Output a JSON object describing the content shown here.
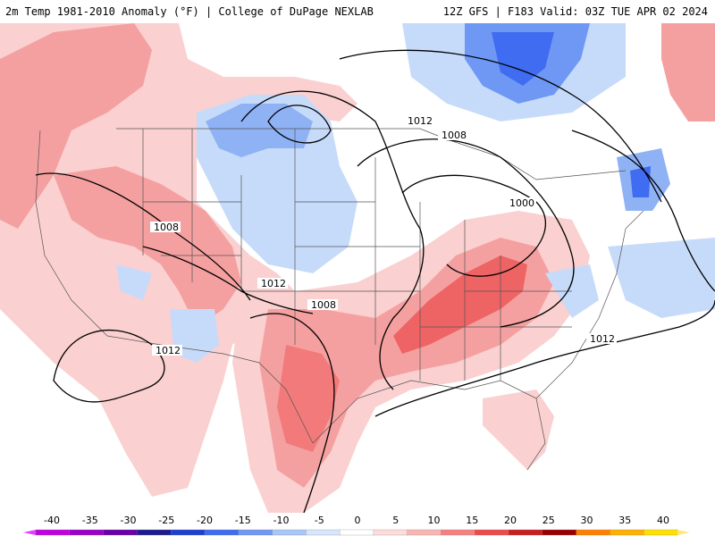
{
  "header": {
    "left_title": "2m Temp 1981-2010 Anomaly (°F) | College of DuPage NEXLAB",
    "right_title": "12Z GFS | F183 Valid: 03Z TUE APR 02 2024"
  },
  "contour_labels": [
    {
      "id": "isobar-1012-north",
      "text": "1012"
    },
    {
      "id": "isobar-1008-north",
      "text": "1008"
    },
    {
      "id": "isobar-1000",
      "text": "1000"
    },
    {
      "id": "isobar-1008-west",
      "text": "1008"
    },
    {
      "id": "isobar-1012-central",
      "text": "1012"
    },
    {
      "id": "isobar-1008-central",
      "text": "1008"
    },
    {
      "id": "isobar-1012-southwest",
      "text": "1012"
    },
    {
      "id": "isobar-1012-east",
      "text": "1012"
    }
  ],
  "colorbar": {
    "ticks": [
      "-40",
      "-35",
      "-30",
      "-25",
      "-20",
      "-15",
      "-10",
      "-5",
      "0",
      "5",
      "10",
      "15",
      "20",
      "25",
      "30",
      "35",
      "40"
    ],
    "colors": [
      "#c000e0",
      "#9a00c8",
      "#6a00a8",
      "#1c1c90",
      "#1f3fd0",
      "#3f6cf0",
      "#6f98f5",
      "#a8c6fa",
      "#d7e6fc",
      "#ffffff",
      "#fddcdc",
      "#fab4b4",
      "#f68080",
      "#ee4a4a",
      "#c81e1e",
      "#9a0000",
      "#ff8000",
      "#ffb000",
      "#ffe000"
    ],
    "end_left_color": "#e040ff",
    "end_right_color": "#ffe87a"
  }
}
